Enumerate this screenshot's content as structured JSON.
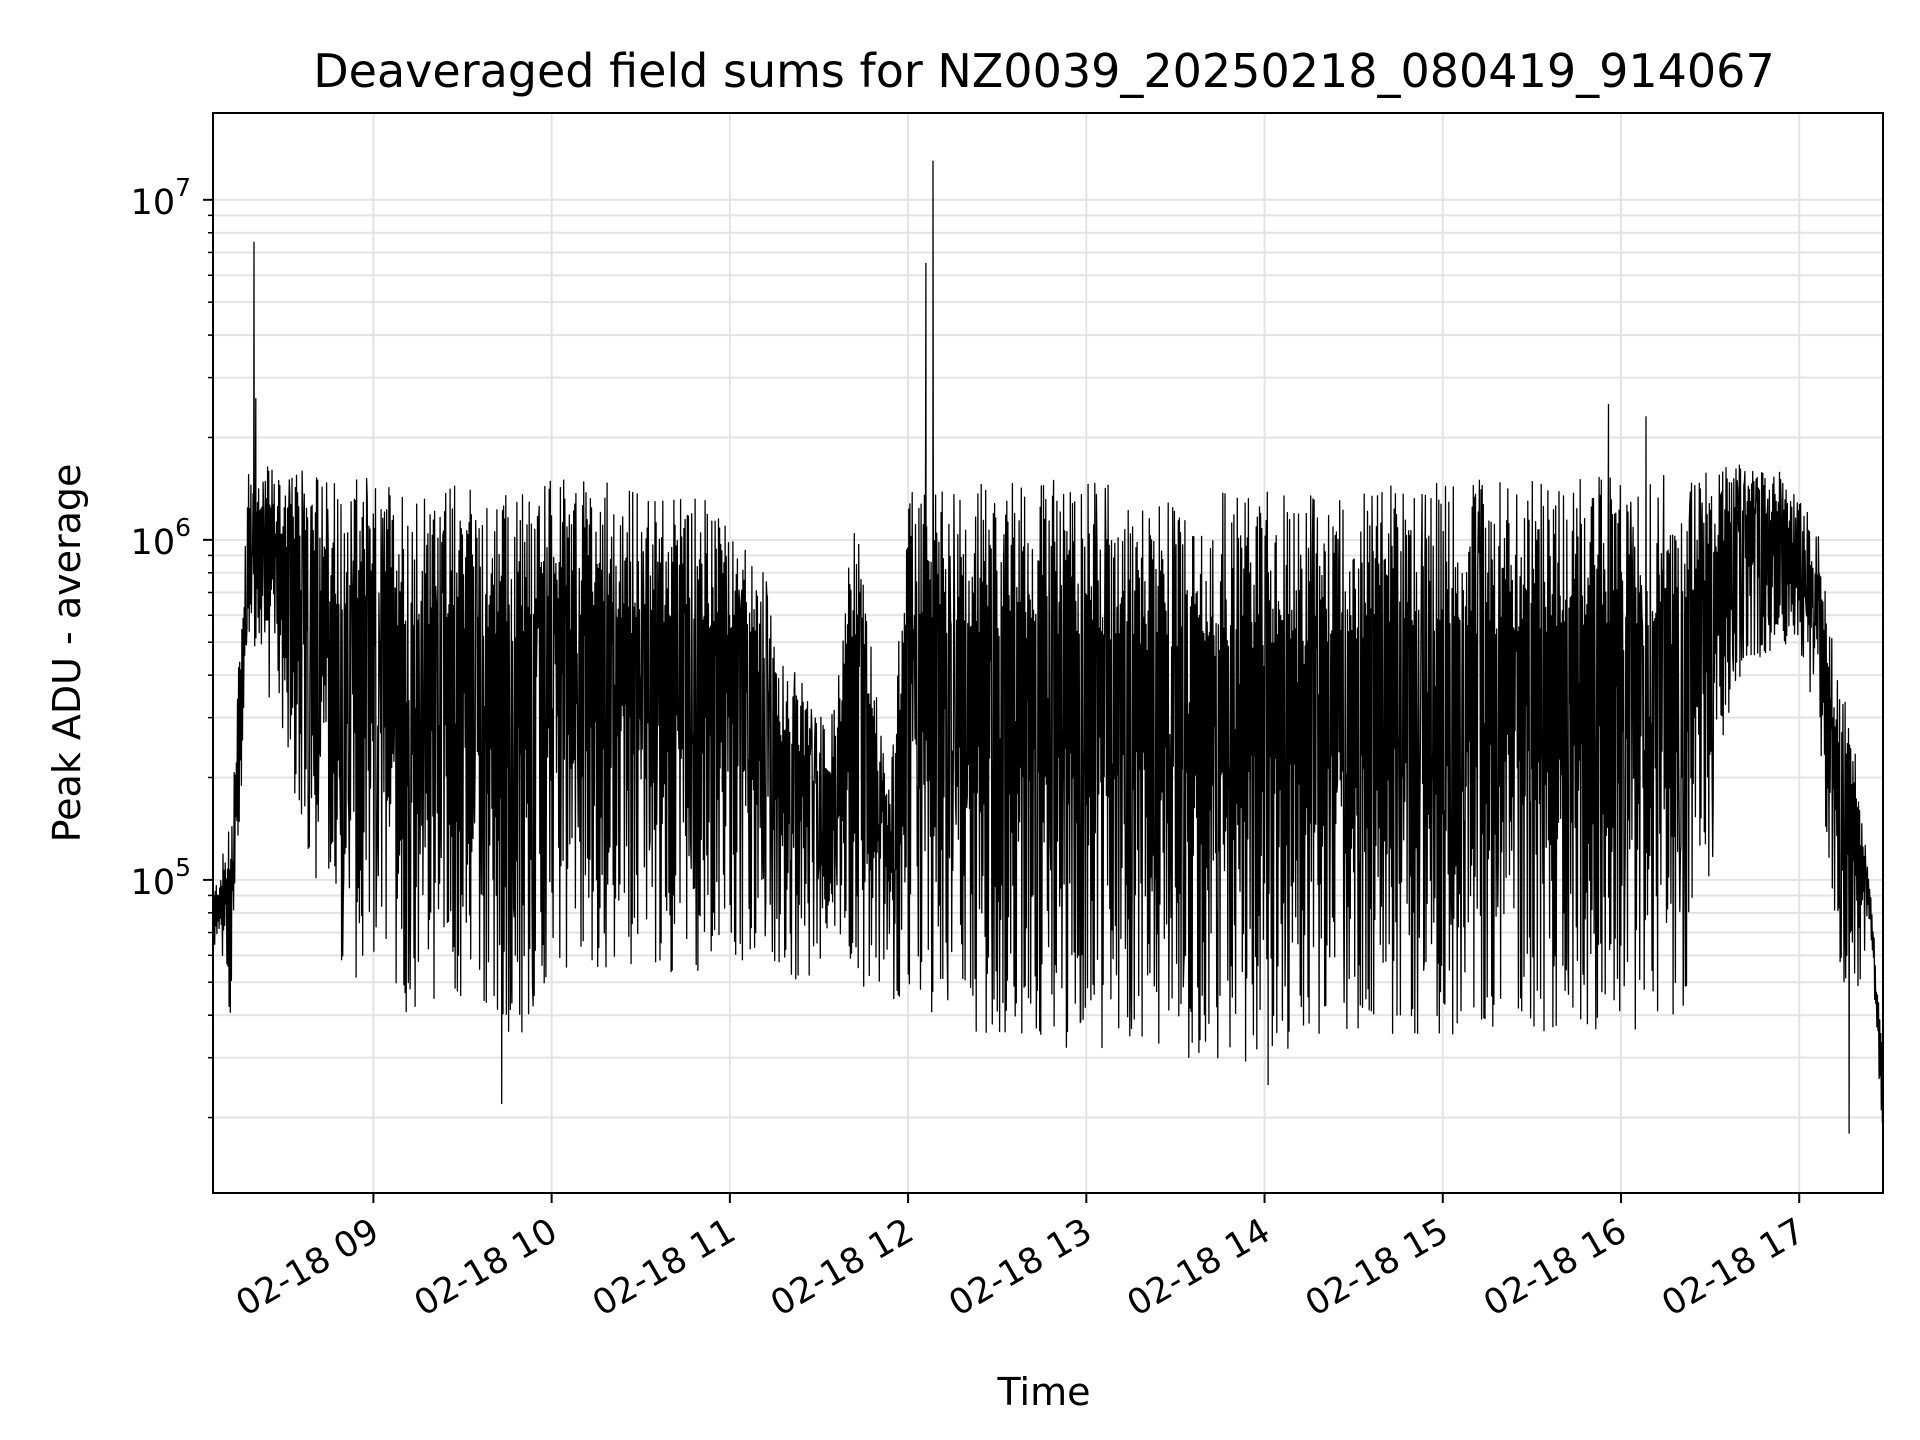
{
  "chart_data": {
    "type": "line",
    "title": "Deaveraged field sums for NZ0039_20250218_080419_914067",
    "xlabel": "Time",
    "ylabel": "Peak ADU - average",
    "yscale": "log",
    "grid": true,
    "xlim": [
      "02-18 08:06",
      "02-18 17:28"
    ],
    "ylim": [
      12000,
      18000000
    ],
    "x_ticks": [
      "02-18 09",
      "02-18 10",
      "02-18 11",
      "02-18 12",
      "02-18 13",
      "02-18 14",
      "02-18 15",
      "02-18 16",
      "02-18 17"
    ],
    "x_tick_hours": [
      9,
      10,
      11,
      12,
      13,
      14,
      15,
      16,
      17
    ],
    "y_ticks": [
      {
        "base": "10",
        "exp": "5",
        "value": 100000
      },
      {
        "base": "10",
        "exp": "6",
        "value": 1000000
      },
      {
        "base": "10",
        "exp": "7",
        "value": 10000000
      }
    ],
    "series": [
      {
        "color": "#000000",
        "description": "dense oscillating signal; values below are the upper and lower envelope sampled per time bin, plus spikes",
        "x_hours": [
          8.1,
          8.2,
          8.3,
          8.4,
          8.5,
          8.6,
          8.7,
          8.8,
          8.9,
          9.0,
          9.1,
          9.2,
          9.3,
          9.4,
          9.5,
          9.6,
          9.7,
          9.8,
          9.9,
          10.0,
          10.1,
          10.2,
          10.3,
          10.4,
          10.5,
          10.6,
          10.7,
          10.8,
          10.9,
          11.0,
          11.1,
          11.2,
          11.3,
          11.4,
          11.5,
          11.6,
          11.7,
          11.8,
          11.9,
          12.0,
          12.1,
          12.2,
          12.3,
          12.4,
          12.5,
          12.6,
          12.7,
          12.8,
          12.9,
          13.0,
          13.1,
          13.2,
          13.3,
          13.4,
          13.5,
          13.6,
          13.7,
          13.8,
          13.9,
          14.0,
          14.1,
          14.2,
          14.3,
          14.4,
          14.5,
          14.6,
          14.7,
          14.8,
          14.9,
          15.0,
          15.1,
          15.2,
          15.3,
          15.4,
          15.5,
          15.6,
          15.7,
          15.8,
          15.9,
          16.0,
          16.1,
          16.2,
          16.3,
          16.4,
          16.5,
          16.6,
          16.7,
          16.8,
          16.9,
          17.0,
          17.1,
          17.2,
          17.3,
          17.4,
          17.47
        ],
        "upper": [
          90000,
          150000,
          1600000,
          1700000,
          1500000,
          1600000,
          1600000,
          1550000,
          1500000,
          1550000,
          1500000,
          1500000,
          1450000,
          1500000,
          1500000,
          1450000,
          1400000,
          1400000,
          1400000,
          1500000,
          1500000,
          1500000,
          1500000,
          1450000,
          1400000,
          1350000,
          1400000,
          1350000,
          1300000,
          1200000,
          900000,
          800000,
          450000,
          400000,
          300000,
          350000,
          1300000,
          450000,
          200000,
          1450000,
          1400000,
          1500000,
          1500000,
          1500000,
          1500000,
          1500000,
          1500000,
          1500000,
          1500000,
          1500000,
          1500000,
          1450000,
          1300000,
          1350000,
          1350000,
          1350000,
          1350000,
          1400000,
          1400000,
          1400000,
          1350000,
          1350000,
          1400000,
          1400000,
          1400000,
          1400000,
          1450000,
          1450000,
          1450000,
          1500000,
          1500000,
          1500000,
          1500000,
          1500000,
          1500000,
          1500000,
          1500000,
          1550000,
          1550000,
          1550000,
          1550000,
          1550000,
          1600000,
          1650000,
          1600000,
          1650000,
          1700000,
          1600000,
          1600000,
          1300000,
          1100000,
          450000,
          280000,
          95000,
          30000
        ],
        "lower": [
          65000,
          40000,
          500000,
          350000,
          250000,
          130000,
          80000,
          60000,
          50000,
          45000,
          40000,
          40000,
          42000,
          45000,
          40000,
          38000,
          35000,
          33000,
          40000,
          50000,
          52000,
          55000,
          55000,
          55000,
          54000,
          54000,
          52000,
          52000,
          55000,
          58000,
          55000,
          55000,
          50000,
          50000,
          50000,
          52000,
          48000,
          45000,
          45000,
          40000,
          38000,
          36000,
          35000,
          35000,
          34000,
          33000,
          33000,
          32000,
          32000,
          32000,
          32000,
          31000,
          30000,
          30000,
          30000,
          30000,
          30000,
          29000,
          29000,
          30000,
          31000,
          32000,
          33000,
          34000,
          34000,
          34000,
          35000,
          35000,
          35000,
          35000,
          35000,
          35000,
          35000,
          35000,
          35000,
          35000,
          36000,
          36000,
          36000,
          36000,
          36000,
          38000,
          40000,
          45000,
          100000,
          280000,
          450000,
          450000,
          500000,
          450000,
          300000,
          60000,
          40000,
          70000,
          16000
        ],
        "spikes": [
          {
            "x_hour": 8.33,
            "value": 7500000
          },
          {
            "x_hour": 8.34,
            "value": 2600000
          },
          {
            "x_hour": 12.1,
            "value": 6500000
          },
          {
            "x_hour": 12.14,
            "value": 13000000
          },
          {
            "x_hour": 15.93,
            "value": 2500000
          },
          {
            "x_hour": 16.14,
            "value": 2300000
          },
          {
            "x_hour": 9.72,
            "value": 22000
          },
          {
            "x_hour": 14.02,
            "value": 25000
          },
          {
            "x_hour": 17.28,
            "value": 18000
          }
        ]
      }
    ]
  }
}
